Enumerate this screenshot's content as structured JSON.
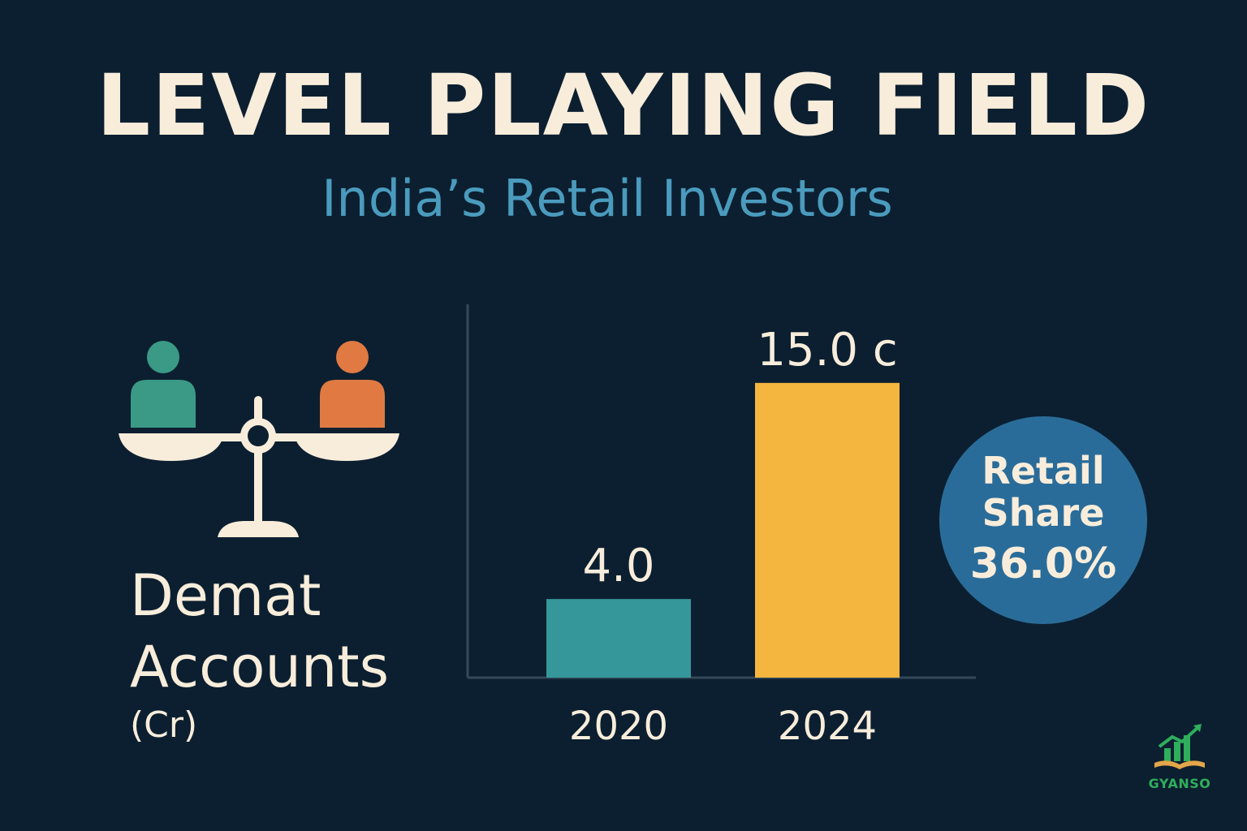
{
  "header": {
    "title": "LEVEL PLAYING FIELD",
    "subtitle": "India’s Retail Investors"
  },
  "left_label": {
    "line1": "Demat",
    "line2": "Accounts",
    "line3": "(Cr)"
  },
  "chart_data": {
    "type": "bar",
    "categories": [
      "2020",
      "2024"
    ],
    "values": [
      4.0,
      15.0
    ],
    "value_labels": [
      "4.0",
      "15.0 c"
    ],
    "bar_colors": [
      "#36979a",
      "#f4b63f"
    ],
    "title": "",
    "xlabel": "",
    "ylabel": "Demat Accounts (Cr)",
    "ylim": [
      0,
      19
    ],
    "grid": false
  },
  "share_badge": {
    "line1": "Retail",
    "line2": "Share",
    "value": "36.0%"
  },
  "logo": {
    "text": "GYANSO"
  },
  "colors": {
    "background": "#0c1f30",
    "title": "#f8eddb",
    "subtitle": "#4a9bbd",
    "person_left": "#3a9a86",
    "person_right": "#e07a42",
    "badge": "#2a6c99"
  },
  "icons": [
    "balance-scale-icon",
    "person-icon",
    "growth-chart-icon"
  ]
}
